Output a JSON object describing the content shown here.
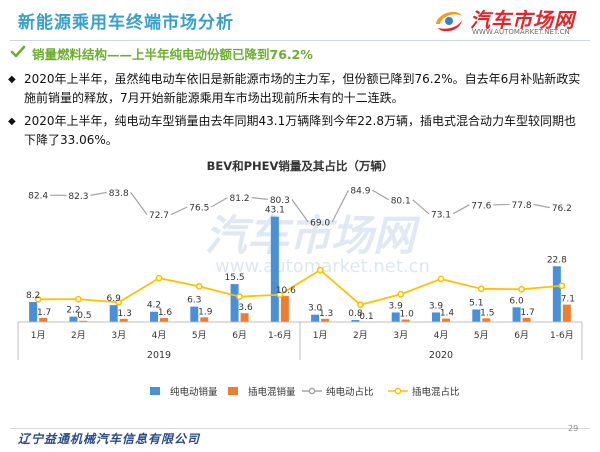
{
  "header": {
    "title": "新能源乘用车终端市场分析",
    "logo_text": "汽车市场网",
    "logo_url": "WWW.AUTOMARKET.NET.CN"
  },
  "subtitle": "销量燃料结构——上半年纯电动份额已降到76.2%",
  "bullets": [
    "2020年上半年，虽然纯电动车依旧是新能源市场的主力军，但份额已降到76.2%。自去年6月补贴新政实施前销量的释放，7月开始新能源乘用车市场出现前所未有的十二连跌。",
    "2020年上半年，纯电动车型销量由去年同期43.1万辆降到今年22.8万辆，插电式混合动力车型较同期也下降了33.06%。"
  ],
  "watermark": {
    "main": "汽车市场网",
    "url": "www.automarket.net.cn"
  },
  "footer": {
    "company": "辽宁益通机械汽车信息有限公司",
    "page": "29"
  },
  "colors": {
    "bev": "#4a90d9",
    "phev": "#ed7d31",
    "bev_share": "#a5a5a5",
    "phev_share": "#ffc000",
    "accent_title": "#3aa0c8",
    "subtitle": "#6cae2f"
  },
  "chart_data": {
    "type": "bar",
    "title": "BEV和PHEV销量及其占比（万辆）",
    "categories": [
      "1月",
      "2月",
      "3月",
      "4月",
      "5月",
      "6月",
      "1-6月",
      "1月",
      "2月",
      "3月",
      "4月",
      "5月",
      "6月",
      "1-6月"
    ],
    "groups": [
      {
        "label": "2019",
        "span": 7
      },
      {
        "label": "2020",
        "span": 7
      }
    ],
    "series": [
      {
        "name": "纯电动销量",
        "kind": "bar",
        "values": [
          8.2,
          2.2,
          6.9,
          4.2,
          6.3,
          15.5,
          43.1,
          3.0,
          0.8,
          3.9,
          3.9,
          5.1,
          6.0,
          22.8
        ]
      },
      {
        "name": "插电混销量",
        "kind": "bar",
        "values": [
          1.7,
          0.5,
          1.3,
          1.6,
          1.9,
          3.6,
          10.6,
          1.3,
          0.1,
          1.0,
          1.4,
          1.5,
          1.7,
          7.1
        ]
      },
      {
        "name": "纯电动占比",
        "kind": "line",
        "values": [
          82.4,
          82.3,
          83.8,
          72.7,
          76.5,
          81.2,
          80.3,
          69.0,
          84.9,
          80.1,
          73.1,
          77.6,
          77.8,
          76.2
        ]
      },
      {
        "name": "插电混占比",
        "kind": "line",
        "values": [
          17.6,
          17.7,
          16.2,
          27.3,
          23.5,
          18.8,
          19.7,
          31.0,
          15.1,
          19.9,
          26.9,
          22.4,
          22.2,
          23.8
        ]
      }
    ],
    "legend_position": "bottom",
    "grid": false
  }
}
